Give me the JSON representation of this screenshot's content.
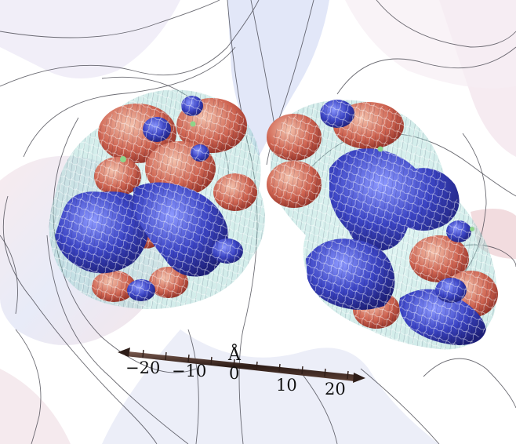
{
  "figure": {
    "description_free": true,
    "colors": {
      "background": "#ffffff",
      "surface_light": "#dfe4f2",
      "surface_pink": "#f3dcdc",
      "negative_lobe": "#3a45b8",
      "positive_lobe": "#c8503f",
      "envelope": "#9fd3cf",
      "axis_bar": "#4a3028"
    }
  },
  "scale_axis": {
    "unit": "Å",
    "ticks": [
      "−20",
      "−10",
      "0",
      "10",
      "20"
    ]
  }
}
